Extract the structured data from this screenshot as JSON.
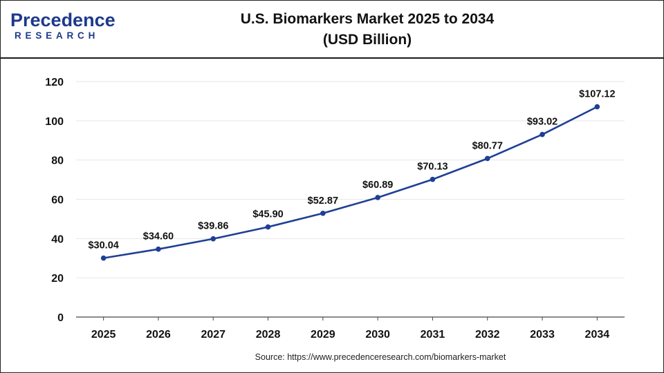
{
  "logo": {
    "line1": "Precedence",
    "line2": "RESEARCH"
  },
  "title_line1": "U.S. Biomarkers Market 2025 to 2034",
  "title_line2": "(USD Billion)",
  "source": "Source: https://www.precedenceresearch.com/biomarkers-market",
  "colors": {
    "line": "#1f3f95",
    "marker": "#1f3f95",
    "grid": "#e6e6e6",
    "axis": "#444444",
    "brand": "#1d3a8a"
  },
  "chart_data": {
    "type": "line",
    "x": [
      "2025",
      "2026",
      "2027",
      "2028",
      "2029",
      "2030",
      "2031",
      "2032",
      "2033",
      "2034"
    ],
    "series": [
      {
        "values": [
          30.04,
          34.6,
          39.86,
          45.9,
          52.87,
          60.89,
          70.13,
          80.77,
          93.02,
          107.12
        ],
        "labels": [
          "$30.04",
          "$34.60",
          "$39.86",
          "$45.90",
          "$52.87",
          "$60.89",
          "$70.13",
          "$80.77",
          "$93.02",
          "$107.12"
        ]
      }
    ],
    "ylim": [
      0,
      120
    ],
    "yticks": [
      0,
      20,
      40,
      60,
      80,
      100,
      120
    ],
    "grid": true,
    "xlabel": "",
    "ylabel": ""
  }
}
